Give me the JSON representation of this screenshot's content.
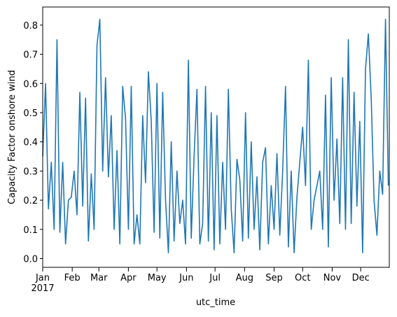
{
  "chart_data": {
    "type": "line",
    "xlabel": "utc_time",
    "ylabel": "Capacity Factor onshore wind",
    "x_year_label": "2017",
    "x": [
      0,
      3,
      6,
      9,
      12,
      15,
      18,
      21,
      24,
      27,
      30,
      33,
      36,
      39,
      42,
      45,
      48,
      51,
      54,
      57,
      60,
      63,
      66,
      69,
      72,
      75,
      78,
      81,
      84,
      87,
      90,
      93,
      96,
      99,
      102,
      105,
      108,
      111,
      114,
      117,
      120,
      123,
      126,
      129,
      132,
      135,
      138,
      141,
      144,
      147,
      150,
      153,
      156,
      159,
      162,
      165,
      168,
      171,
      174,
      177,
      180,
      183,
      186,
      189,
      192,
      195,
      198,
      201,
      204,
      207,
      210,
      213,
      216,
      219,
      222,
      225,
      228,
      231,
      234,
      237,
      240,
      243,
      246,
      249,
      252,
      255,
      258,
      261,
      264,
      267,
      270,
      273,
      276,
      279,
      282,
      285,
      288,
      291,
      294,
      297,
      300,
      303,
      306,
      309,
      312,
      315,
      318,
      321,
      324,
      327,
      330,
      333,
      336,
      339,
      342,
      345,
      348,
      351,
      354,
      357,
      360,
      363
    ],
    "series": [
      {
        "name": "onshore wind",
        "color": "#1f77b4",
        "values": [
          0.35,
          0.6,
          0.17,
          0.33,
          0.1,
          0.75,
          0.09,
          0.33,
          0.05,
          0.2,
          0.21,
          0.3,
          0.15,
          0.57,
          0.18,
          0.55,
          0.06,
          0.29,
          0.1,
          0.73,
          0.82,
          0.3,
          0.62,
          0.28,
          0.49,
          0.1,
          0.37,
          0.05,
          0.59,
          0.48,
          0.1,
          0.59,
          0.05,
          0.15,
          0.05,
          0.49,
          0.26,
          0.64,
          0.47,
          0.09,
          0.6,
          0.07,
          0.57,
          0.2,
          0.02,
          0.4,
          0.06,
          0.3,
          0.12,
          0.2,
          0.05,
          0.68,
          0.07,
          0.35,
          0.58,
          0.05,
          0.12,
          0.59,
          0.06,
          0.5,
          0.03,
          0.49,
          0.05,
          0.33,
          0.1,
          0.58,
          0.17,
          0.02,
          0.34,
          0.27,
          0.06,
          0.5,
          0.07,
          0.4,
          0.1,
          0.28,
          0.03,
          0.33,
          0.38,
          0.05,
          0.25,
          0.1,
          0.36,
          0.08,
          0.3,
          0.59,
          0.04,
          0.3,
          0.02,
          0.21,
          0.33,
          0.45,
          0.25,
          0.68,
          0.1,
          0.2,
          0.25,
          0.3,
          0.1,
          0.56,
          0.04,
          0.62,
          0.2,
          0.41,
          0.12,
          0.62,
          0.1,
          0.75,
          0.12,
          0.57,
          0.18,
          0.47,
          0.02,
          0.65,
          0.77,
          0.55,
          0.2,
          0.08,
          0.3,
          0.22,
          0.82,
          0.25
        ]
      }
    ],
    "xlim": [
      0,
      364
    ],
    "xticks": [
      {
        "value": 0,
        "label": "Jan"
      },
      {
        "value": 31,
        "label": "Feb"
      },
      {
        "value": 59,
        "label": "Mar"
      },
      {
        "value": 90,
        "label": "Apr"
      },
      {
        "value": 120,
        "label": "May"
      },
      {
        "value": 151,
        "label": "Jun"
      },
      {
        "value": 181,
        "label": "Jul"
      },
      {
        "value": 212,
        "label": "Aug"
      },
      {
        "value": 243,
        "label": "Sep"
      },
      {
        "value": 273,
        "label": "Oct"
      },
      {
        "value": 304,
        "label": "Nov"
      },
      {
        "value": 334,
        "label": "Dec"
      }
    ],
    "ylim": [
      -0.03,
      0.862
    ],
    "yticks": [
      {
        "value": 0,
        "label": "0.0"
      },
      0.1,
      0.2,
      0.3,
      0.4,
      0.5,
      0.6,
      0.7,
      0.8
    ]
  }
}
